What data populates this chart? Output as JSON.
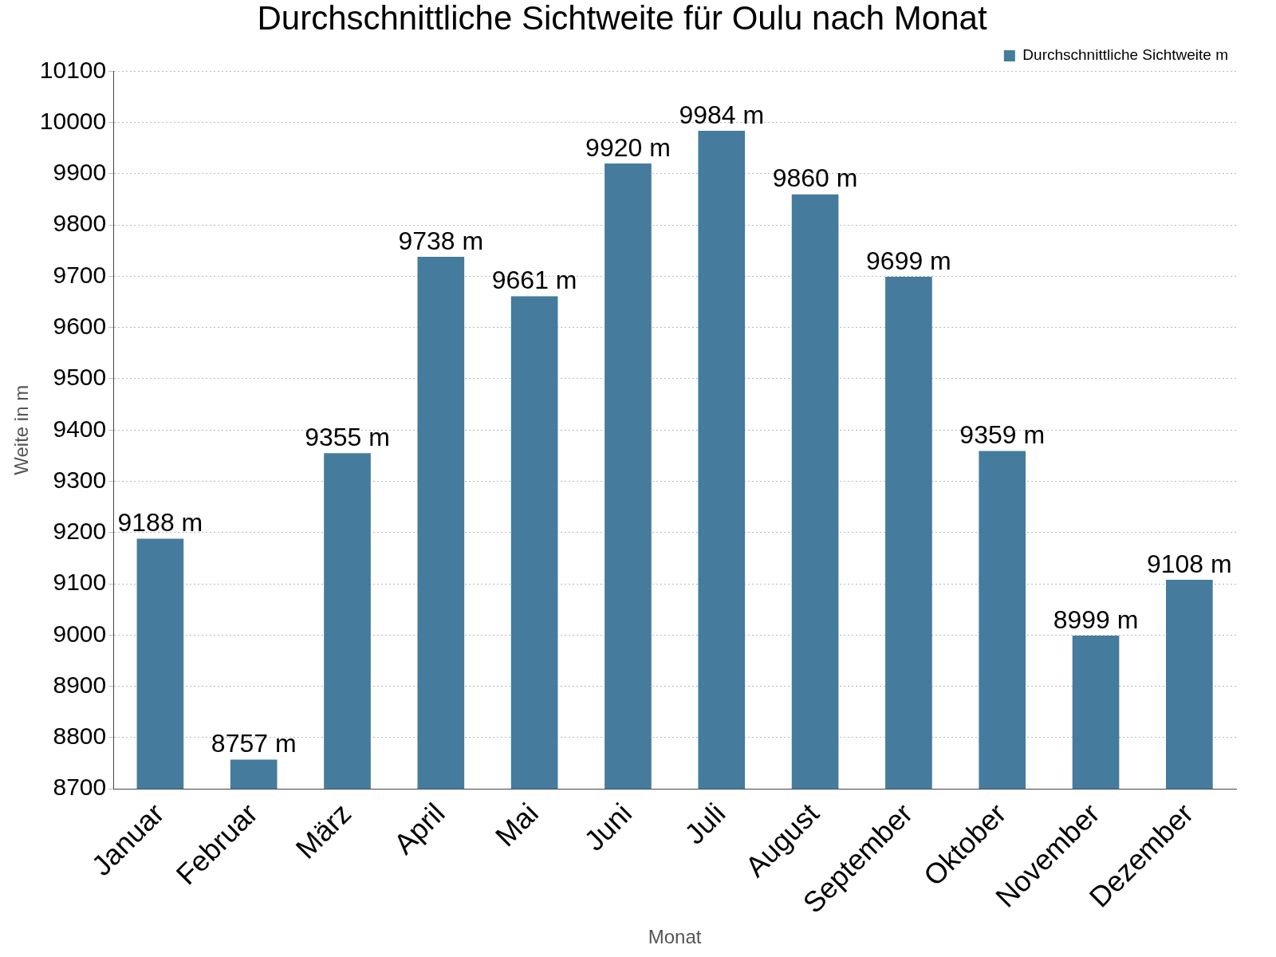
{
  "chart_data": {
    "type": "bar",
    "title": "Durchschnittliche Sichtweite für Oulu nach Monat",
    "xlabel": "Monat",
    "ylabel": "Weite in m",
    "categories": [
      "Januar",
      "Februar",
      "März",
      "April",
      "Mai",
      "Juni",
      "Juli",
      "August",
      "September",
      "Oktober",
      "November",
      "Dezember"
    ],
    "series": [
      {
        "name": "Durchschnittliche Sichtweite m",
        "color": "#457b9d",
        "values": [
          9188,
          8757,
          9355,
          9738,
          9661,
          9920,
          9984,
          9860,
          9699,
          9359,
          8999,
          9108
        ],
        "value_labels": [
          "9188 m",
          "8757 m",
          "9355 m",
          "9738 m",
          "9661 m",
          "9920 m",
          "9984 m",
          "9860 m",
          "9699 m",
          "9359 m",
          "8999 m",
          "9108 m"
        ]
      }
    ],
    "ylim": [
      8700,
      10100
    ],
    "yticks": [
      8700,
      8800,
      8900,
      9000,
      9100,
      9200,
      9300,
      9400,
      9500,
      9600,
      9700,
      9800,
      9900,
      10000,
      10100
    ],
    "grid": "y",
    "legend": "top right"
  }
}
